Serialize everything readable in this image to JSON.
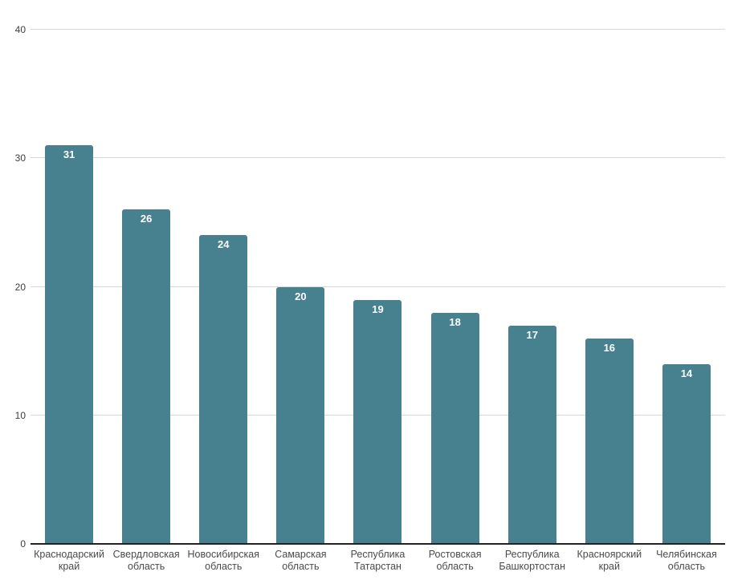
{
  "chart_data": {
    "type": "bar",
    "categories": [
      "Краснодарский край",
      "Свердловская область",
      "Новосибирская область",
      "Самарская область",
      "Республика Татарстан",
      "Ростовская область",
      "Республика Башкортостан",
      "Красноярский край",
      "Челябинская область"
    ],
    "values": [
      31,
      26,
      24,
      20,
      19,
      18,
      17,
      16,
      14
    ],
    "title": "",
    "xlabel": "",
    "ylabel": "",
    "ylim": [
      0,
      40
    ],
    "yticks": [
      0,
      10,
      20,
      30,
      40
    ],
    "grid": true,
    "legend": "none",
    "colors": {
      "bar": "#47808F",
      "gridline": "#d9d9d9",
      "axis_line": "#222222",
      "value_label": "#ffffff",
      "y_tick_label": "#3d3d3d",
      "x_tick_label": "#4a4a4a",
      "background": "#ffffff"
    }
  }
}
